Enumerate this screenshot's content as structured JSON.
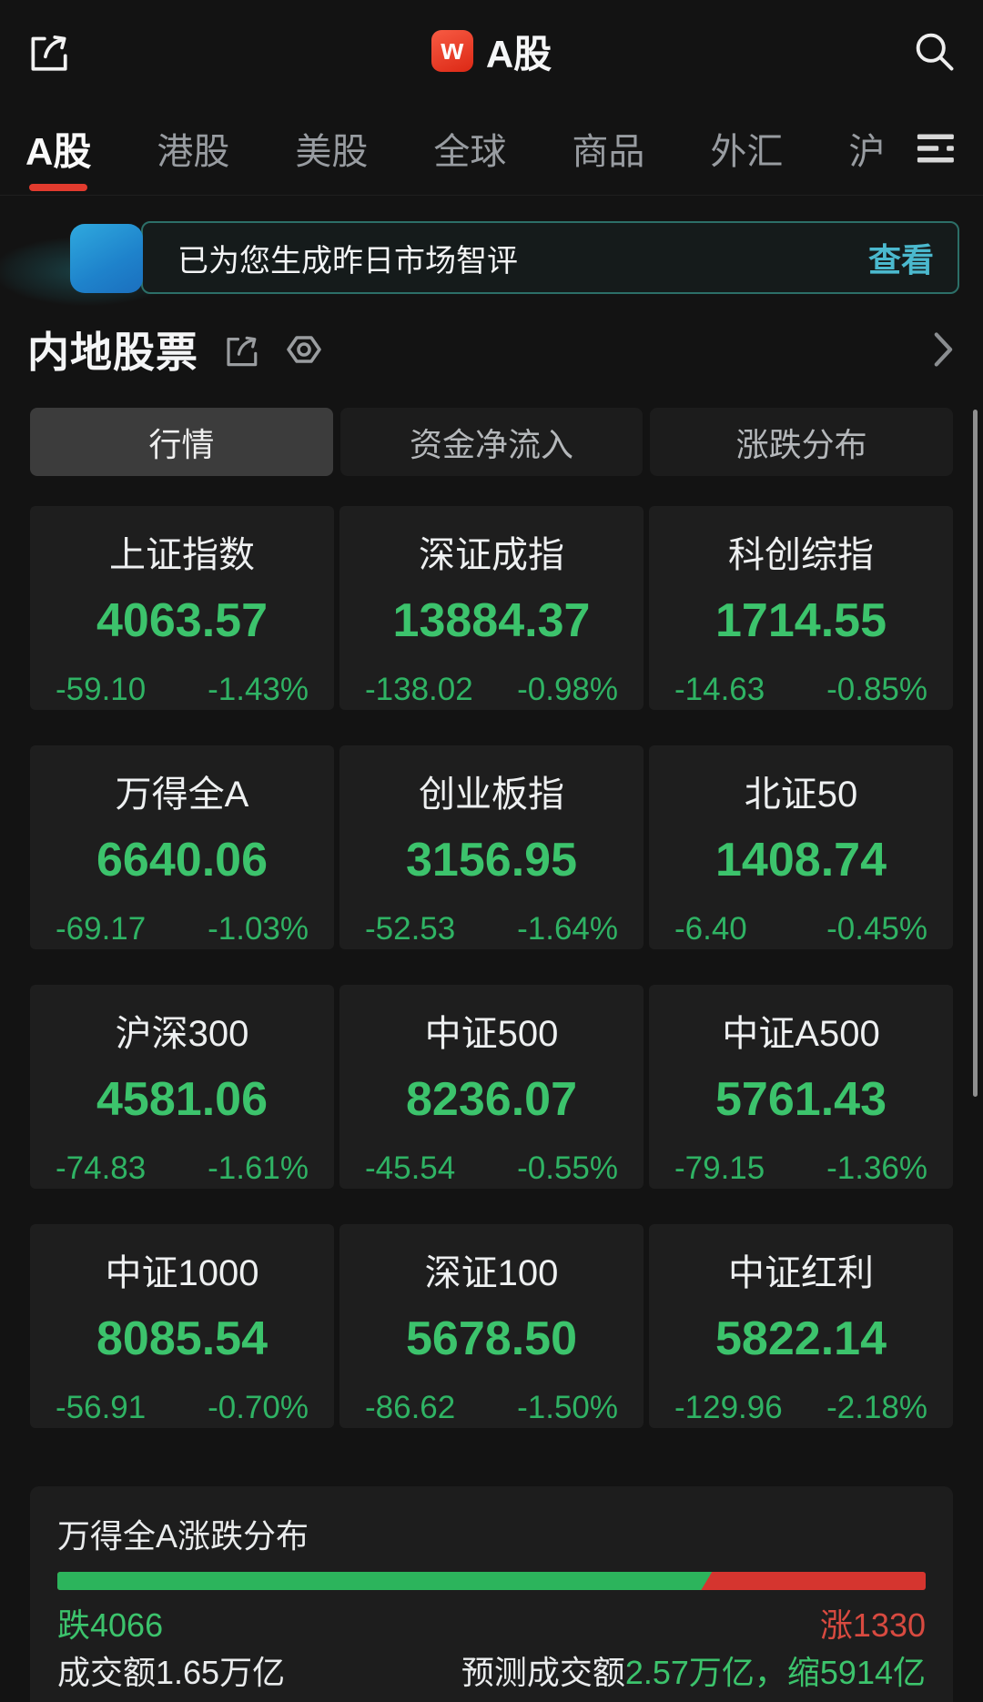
{
  "header": {
    "title": "A股",
    "logo_letter": "w"
  },
  "tabbar": {
    "tabs": [
      "A股",
      "港股",
      "美股",
      "全球",
      "商品",
      "外汇",
      "沪"
    ],
    "active_index": 0
  },
  "banner": {
    "message": "已为您生成昨日市场智评",
    "action": "查看"
  },
  "section": {
    "title": "内地股票"
  },
  "subtabs": {
    "items": [
      "行情",
      "资金净流入",
      "涨跌分布"
    ],
    "active_index": 0
  },
  "indices": [
    {
      "name": "上证指数",
      "value": "4063.57",
      "change": "-59.10",
      "pct": "-1.43%"
    },
    {
      "name": "深证成指",
      "value": "13884.37",
      "change": "-138.02",
      "pct": "-0.98%"
    },
    {
      "name": "科创综指",
      "value": "1714.55",
      "change": "-14.63",
      "pct": "-0.85%"
    },
    {
      "name": "万得全A",
      "value": "6640.06",
      "change": "-69.17",
      "pct": "-1.03%"
    },
    {
      "name": "创业板指",
      "value": "3156.95",
      "change": "-52.53",
      "pct": "-1.64%"
    },
    {
      "name": "北证50",
      "value": "1408.74",
      "change": "-6.40",
      "pct": "-0.45%"
    },
    {
      "name": "沪深300",
      "value": "4581.06",
      "change": "-74.83",
      "pct": "-1.61%"
    },
    {
      "name": "中证500",
      "value": "8236.07",
      "change": "-45.54",
      "pct": "-0.55%"
    },
    {
      "name": "中证A500",
      "value": "5761.43",
      "change": "-79.15",
      "pct": "-1.36%"
    },
    {
      "name": "中证1000",
      "value": "8085.54",
      "change": "-56.91",
      "pct": "-0.70%"
    },
    {
      "name": "深证100",
      "value": "5678.50",
      "change": "-86.62",
      "pct": "-1.50%"
    },
    {
      "name": "中证红利",
      "value": "5822.14",
      "change": "-129.96",
      "pct": "-2.18%"
    }
  ],
  "distribution": {
    "title": "万得全A涨跌分布",
    "down_count": 4066,
    "up_count": 1330,
    "down_label": "跌4066",
    "up_label": "涨1330",
    "turnover_label": "成交额1.65万亿",
    "forecast_prefix": "预测成交额",
    "forecast_value": "2.57万亿，缩5914亿"
  },
  "colors": {
    "accent_red": "#e23b2e",
    "up_red": "#d84a40",
    "bar_red": "#d5352f",
    "down_green": "#3cc36c",
    "green_dim": "#2fb364",
    "bar_green": "#2cb45c",
    "link_cyan": "#4bb9ce"
  }
}
